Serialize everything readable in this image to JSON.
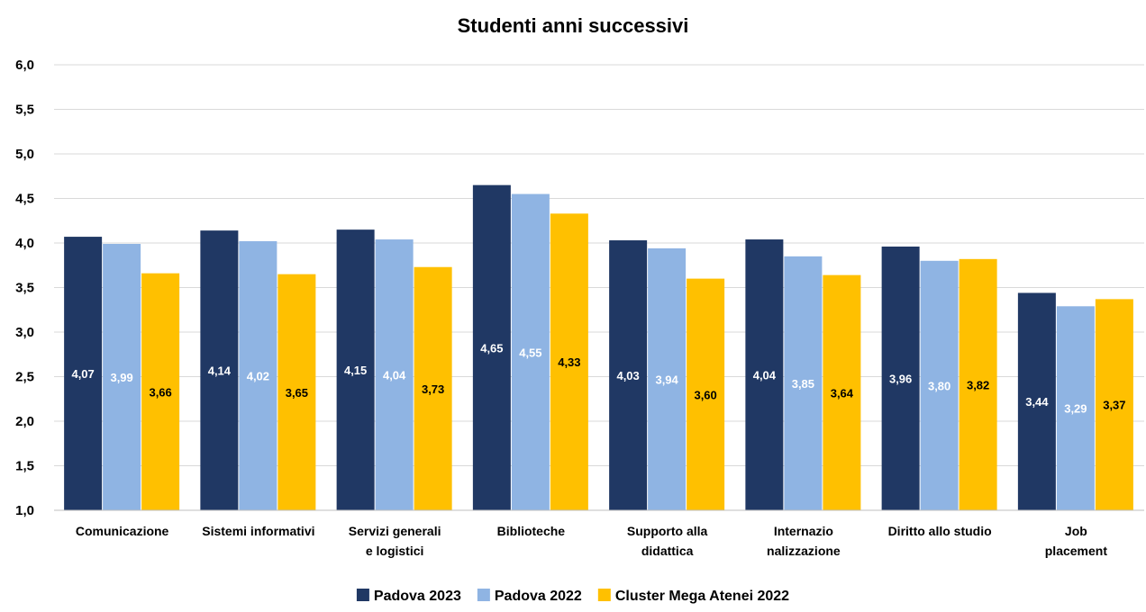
{
  "chart_data": {
    "type": "bar",
    "title": "Studenti anni successivi",
    "xlabel": "",
    "ylabel": "",
    "ylim": [
      1.0,
      6.0
    ],
    "yticks": [
      "1,0",
      "1,5",
      "2,0",
      "2,5",
      "3,0",
      "3,5",
      "4,0",
      "4,5",
      "5,0",
      "5,5",
      "6,0"
    ],
    "grid": true,
    "legend_position": "bottom",
    "categories": [
      [
        "Comunicazione"
      ],
      [
        "Sistemi informativi"
      ],
      [
        "Servizi generali",
        "e logistici"
      ],
      [
        "Biblioteche"
      ],
      [
        "Supporto alla",
        "didattica"
      ],
      [
        "Internazio",
        "nalizzazione"
      ],
      [
        "Diritto allo studio"
      ],
      [
        "Job",
        "placement"
      ]
    ],
    "series": [
      {
        "name": "Padova 2023",
        "color": "#203864",
        "label_color": "#ffffff",
        "values": [
          4.07,
          4.14,
          4.15,
          4.65,
          4.03,
          4.04,
          3.96,
          3.44
        ],
        "labels": [
          "4,07",
          "4,14",
          "4,15",
          "4,65",
          "4,03",
          "4,04",
          "3,96",
          "3,44"
        ]
      },
      {
        "name": "Padova 2022",
        "color": "#8fb4e3",
        "label_color": "#ffffff",
        "values": [
          3.99,
          4.02,
          4.04,
          4.55,
          3.94,
          3.85,
          3.8,
          3.29
        ],
        "labels": [
          "3,99",
          "4,02",
          "4,04",
          "4,55",
          "3,94",
          "3,85",
          "3,80",
          "3,29"
        ]
      },
      {
        "name": "Cluster Mega Atenei 2022",
        "color": "#ffc000",
        "label_color": "#000000",
        "values": [
          3.66,
          3.65,
          3.73,
          4.33,
          3.6,
          3.64,
          3.82,
          3.37
        ],
        "labels": [
          "3,66",
          "3,65",
          "3,73",
          "4,33",
          "3,60",
          "3,64",
          "3,82",
          "3,37"
        ]
      }
    ]
  }
}
